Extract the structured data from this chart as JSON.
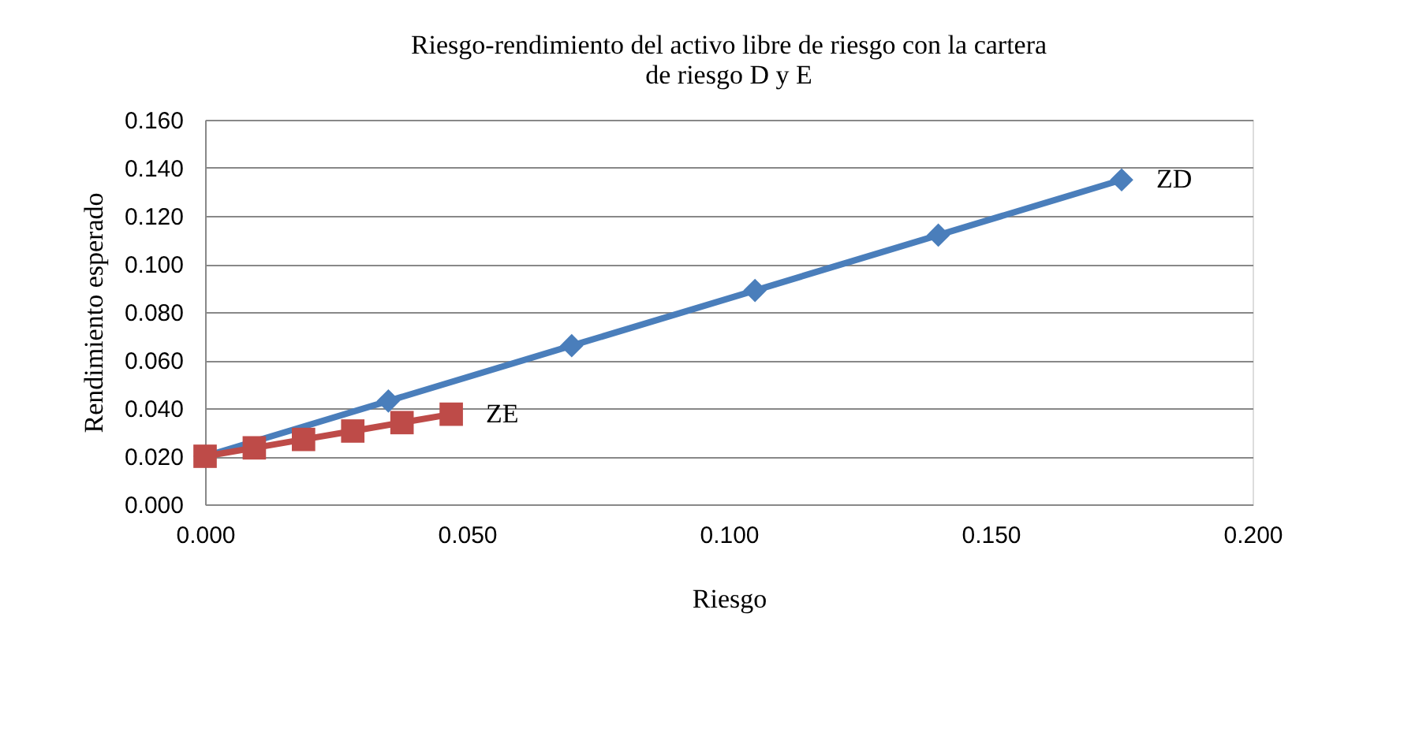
{
  "chart_data": {
    "type": "line",
    "title": "Riesgo-rendimiento del activo libre de riesgo con la cartera de riesgo D y E",
    "xlabel": "Riesgo",
    "ylabel": "Rendimiento esperado",
    "series": [
      {
        "color": "#4a7ebb",
        "marker": "diamond",
        "x": [
          0.0,
          0.035,
          0.07,
          0.105,
          0.14,
          0.175
        ],
        "values": [
          0.02,
          0.043,
          0.066,
          0.089,
          0.112,
          0.135
        ]
      },
      {
        "color": "#be4b48",
        "marker": "square",
        "x": [
          0.0,
          0.0094,
          0.0188,
          0.0282,
          0.0376,
          0.047
        ],
        "values": [
          0.02,
          0.0235,
          0.027,
          0.0305,
          0.034,
          0.0375
        ]
      }
    ],
    "annotations": [
      {
        "text": "ZD",
        "x": 0.175,
        "y": 0.135
      },
      {
        "text": "ZE",
        "x": 0.047,
        "y": 0.0375
      }
    ],
    "xlim": [
      0.0,
      0.2
    ],
    "xticks": [
      {
        "value": 0,
        "label": "0.000"
      },
      {
        "value": 0.05,
        "label": "0.050"
      },
      {
        "value": 0.1,
        "label": "0.100"
      },
      {
        "value": 0.15,
        "label": "0.150"
      },
      {
        "value": 0.2,
        "label": "0.200"
      }
    ],
    "ylim": [
      0.0,
      0.16
    ],
    "yticks": [
      {
        "value": 0,
        "label": "0.000"
      },
      {
        "value": 0.02,
        "label": "0.020"
      },
      {
        "value": 0.04,
        "label": "0.040"
      },
      {
        "value": 0.06,
        "label": "0.060"
      },
      {
        "value": 0.08,
        "label": "0.080"
      },
      {
        "value": 0.1,
        "label": "0.100"
      },
      {
        "value": 0.12,
        "label": "0.120"
      },
      {
        "value": 0.14,
        "label": "0.140"
      },
      {
        "value": 0.16,
        "label": "0.160"
      }
    ],
    "grid": "y",
    "legend": false,
    "line_style": "solid"
  }
}
